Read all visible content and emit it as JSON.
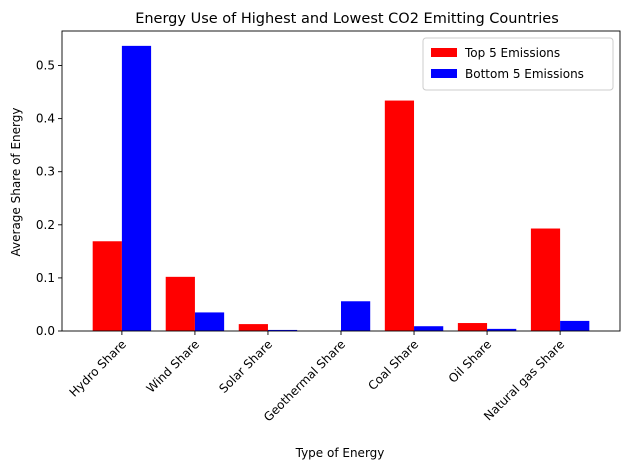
{
  "chart_data": {
    "type": "bar",
    "title": "Energy Use of Highest and Lowest CO2 Emitting Countries",
    "xlabel": "Type of Energy",
    "ylabel": "Average Share of Energy",
    "categories": [
      "Hydro Share",
      "Wind Share",
      "Solar Share",
      "Geothermal Share",
      "Coal Share",
      "Oil Share",
      "Natural gas Share"
    ],
    "series": [
      {
        "name": "Top 5 Emissions",
        "color": "#ff0000",
        "values": [
          0.169,
          0.102,
          0.013,
          0.0,
          0.434,
          0.015,
          0.193
        ]
      },
      {
        "name": "Bottom 5 Emissions",
        "color": "#0000ff",
        "values": [
          0.537,
          0.035,
          0.002,
          0.056,
          0.009,
          0.004,
          0.019
        ]
      }
    ],
    "yticks": [
      0.0,
      0.1,
      0.2,
      0.3,
      0.4,
      0.5
    ],
    "ytick_labels": [
      "0.0",
      "0.1",
      "0.2",
      "0.3",
      "0.4",
      "0.5"
    ],
    "ylim": [
      0,
      0.565
    ],
    "grid": false,
    "legend_position": "top-right"
  }
}
